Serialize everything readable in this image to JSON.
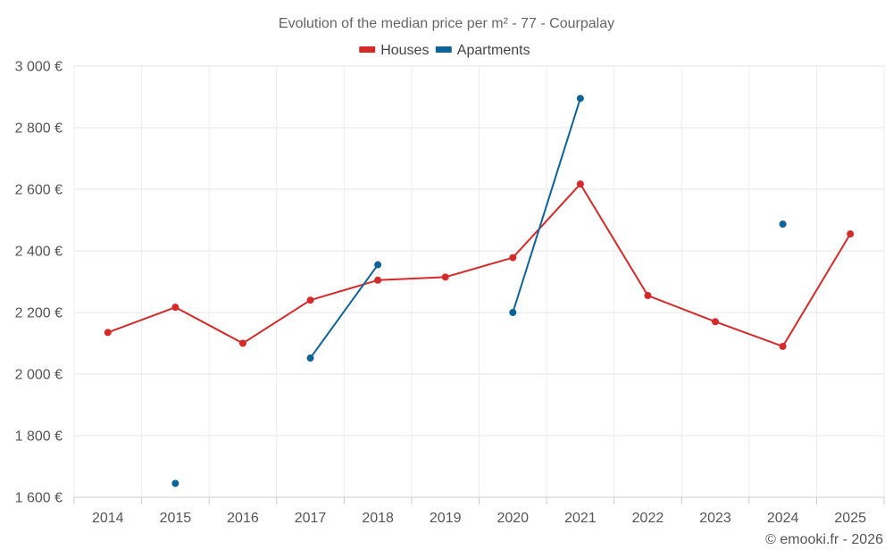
{
  "chart_data": {
    "type": "line",
    "title": "Evolution of the median price per m² - 77 - Courpalay",
    "xlabel": "",
    "ylabel": "",
    "categories": [
      "2014",
      "2015",
      "2016",
      "2017",
      "2018",
      "2019",
      "2020",
      "2021",
      "2022",
      "2023",
      "2024",
      "2025"
    ],
    "ylim": [
      1600,
      3000
    ],
    "y_ticks": [
      1600,
      1800,
      2000,
      2200,
      2400,
      2600,
      2800,
      3000
    ],
    "y_tick_labels": [
      "1 600 €",
      "1 800 €",
      "2 000 €",
      "2 200 €",
      "2 400 €",
      "2 600 €",
      "2 800 €",
      "3 000 €"
    ],
    "grid": true,
    "legend_position": "top-center",
    "series": [
      {
        "name": "Houses",
        "color": "#d42a2a",
        "values": [
          2135,
          2217,
          2100,
          2240,
          2305,
          2315,
          2378,
          2617,
          2255,
          2170,
          2090,
          2455
        ]
      },
      {
        "name": "Apartments",
        "color": "#0e6496",
        "values": [
          null,
          1645,
          null,
          2052,
          2355,
          null,
          2200,
          2895,
          null,
          null,
          2487,
          null
        ]
      }
    ],
    "credit": "© emooki.fr - 2026"
  }
}
